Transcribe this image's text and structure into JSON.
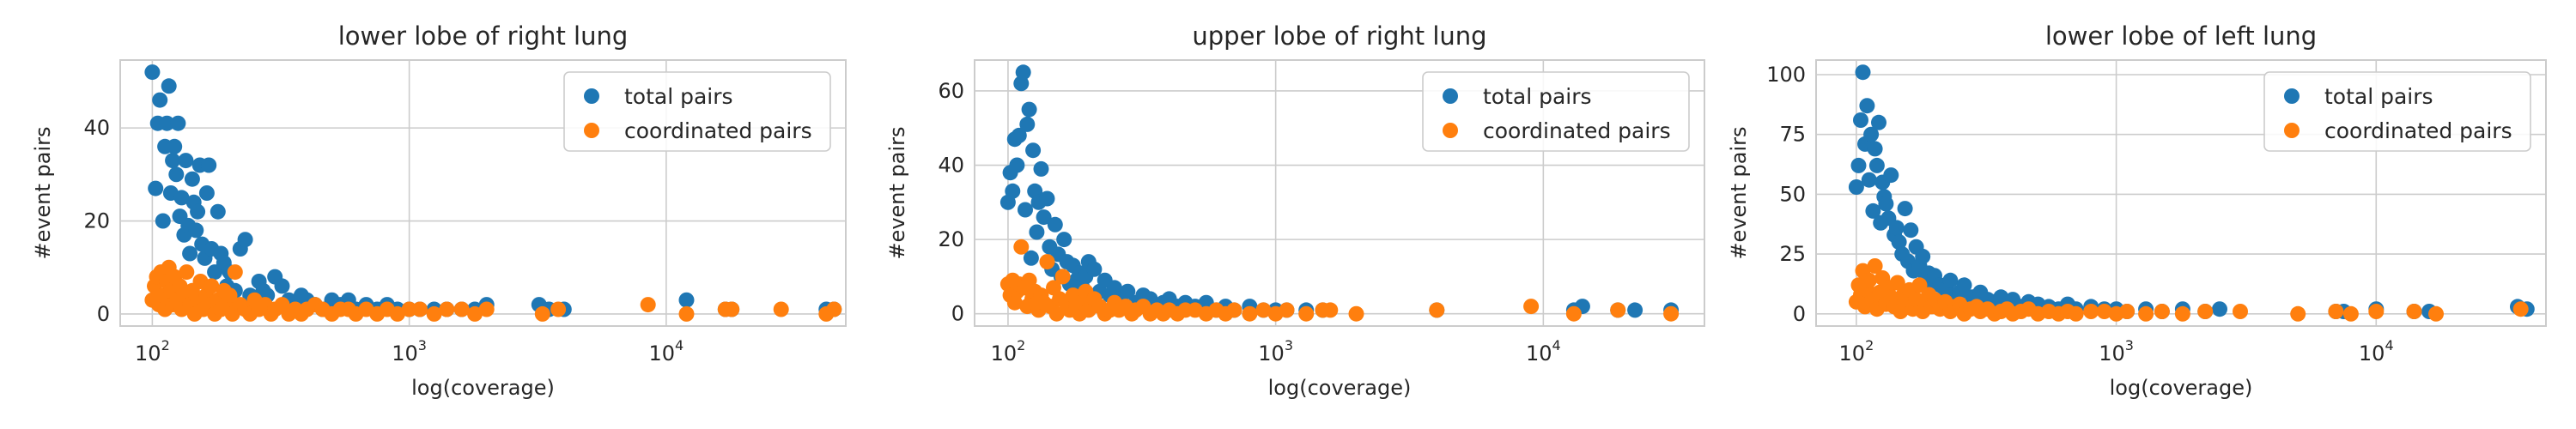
{
  "chart_data": [
    {
      "type": "scatter",
      "title": "lower lobe of right lung",
      "xlabel": "log(coverage)",
      "ylabel": "#event pairs",
      "xscale": "log",
      "xlim": [
        75,
        50000
      ],
      "ylim": [
        -2.6,
        54.6
      ],
      "xticks": [
        {
          "base": "10",
          "exp": "2"
        },
        {
          "base": "10",
          "exp": "3"
        },
        {
          "base": "10",
          "exp": "4"
        }
      ],
      "yticks": [
        0,
        20,
        40
      ],
      "legend": "top-right",
      "series": [
        {
          "name": "total pairs",
          "color": "#1f77b4",
          "x": [
            100,
            103,
            105,
            107,
            110,
            112,
            114,
            116,
            118,
            120,
            122,
            124,
            126,
            128,
            130,
            133,
            135,
            138,
            140,
            143,
            145,
            148,
            150,
            153,
            156,
            160,
            163,
            166,
            170,
            175,
            180,
            185,
            190,
            195,
            200,
            210,
            220,
            230,
            240,
            250,
            260,
            270,
            280,
            300,
            320,
            340,
            360,
            380,
            400,
            430,
            460,
            500,
            540,
            580,
            620,
            680,
            750,
            820,
            900,
            1000,
            1100,
            1250,
            1400,
            1600,
            1800,
            2000,
            3200,
            3500,
            4000,
            12000,
            17000,
            18000,
            42000,
            45000
          ],
          "y": [
            52,
            27,
            41,
            46,
            20,
            36,
            41,
            49,
            26,
            33,
            36,
            30,
            41,
            21,
            25,
            17,
            33,
            19,
            13,
            29,
            24,
            18,
            22,
            32,
            15,
            12,
            26,
            32,
            14,
            9,
            22,
            13,
            11,
            6,
            9,
            5,
            14,
            16,
            4,
            3,
            7,
            5,
            4,
            8,
            6,
            3,
            2,
            4,
            3,
            2,
            1,
            3,
            2,
            3,
            1,
            2,
            1,
            2,
            1,
            1,
            1,
            1,
            1,
            1,
            1,
            2,
            2,
            1,
            1,
            3,
            1,
            1,
            1,
            1
          ]
        },
        {
          "name": "coordinated pairs",
          "color": "#ff7f0e",
          "x": [
            100,
            102,
            104,
            106,
            108,
            110,
            112,
            114,
            116,
            118,
            120,
            122,
            125,
            128,
            130,
            133,
            136,
            140,
            143,
            146,
            150,
            154,
            158,
            162,
            166,
            170,
            175,
            180,
            185,
            190,
            195,
            200,
            205,
            210,
            220,
            230,
            240,
            250,
            260,
            275,
            290,
            300,
            320,
            340,
            360,
            380,
            400,
            430,
            460,
            500,
            540,
            580,
            620,
            680,
            750,
            820,
            900,
            1000,
            1100,
            1250,
            1400,
            1600,
            1800,
            2000,
            3300,
            3800,
            8500,
            12000,
            17000,
            18000,
            28000,
            42000,
            45000
          ],
          "y": [
            3,
            6,
            8,
            2,
            9,
            4,
            1,
            7,
            10,
            5,
            2,
            8,
            3,
            6,
            1,
            4,
            9,
            2,
            5,
            0,
            3,
            7,
            1,
            4,
            2,
            6,
            0,
            3,
            1,
            5,
            2,
            4,
            0,
            9,
            2,
            1,
            0,
            3,
            1,
            2,
            0,
            1,
            2,
            0,
            1,
            0,
            1,
            2,
            1,
            0,
            1,
            1,
            0,
            1,
            0,
            1,
            0,
            1,
            1,
            0,
            1,
            1,
            0,
            1,
            0,
            1,
            2,
            0,
            1,
            1,
            1,
            0,
            1
          ]
        }
      ]
    },
    {
      "type": "scatter",
      "title": "upper lobe of right lung",
      "xlabel": "log(coverage)",
      "ylabel": "#event pairs",
      "xscale": "log",
      "xlim": [
        75,
        40000
      ],
      "ylim": [
        -3.3,
        68.3
      ],
      "xticks": [
        {
          "base": "10",
          "exp": "2"
        },
        {
          "base": "10",
          "exp": "3"
        },
        {
          "base": "10",
          "exp": "4"
        }
      ],
      "yticks": [
        0,
        20,
        40,
        60
      ],
      "legend": "top-right",
      "series": [
        {
          "name": "total pairs",
          "color": "#1f77b4",
          "x": [
            100,
            102,
            104,
            106,
            108,
            110,
            112,
            114,
            116,
            118,
            120,
            122,
            124,
            126,
            128,
            130,
            133,
            136,
            140,
            143,
            146,
            150,
            154,
            158,
            162,
            166,
            170,
            175,
            180,
            185,
            190,
            195,
            200,
            210,
            220,
            230,
            240,
            250,
            260,
            280,
            300,
            320,
            340,
            360,
            380,
            400,
            430,
            460,
            500,
            550,
            600,
            650,
            700,
            800,
            900,
            1000,
            1100,
            1300,
            1500,
            4000,
            13000,
            14000,
            19000,
            22000,
            30000
          ],
          "y": [
            30,
            38,
            33,
            47,
            40,
            48,
            62,
            65,
            28,
            51,
            55,
            15,
            44,
            33,
            22,
            30,
            39,
            26,
            31,
            18,
            12,
            24,
            16,
            10,
            20,
            14,
            8,
            13,
            9,
            11,
            7,
            10,
            14,
            12,
            6,
            9,
            5,
            7,
            4,
            6,
            3,
            5,
            4,
            2,
            3,
            4,
            2,
            3,
            2,
            3,
            1,
            2,
            1,
            2,
            1,
            1,
            1,
            1,
            1,
            1,
            1,
            2,
            1,
            1,
            1
          ]
        },
        {
          "name": "coordinated pairs",
          "color": "#ff7f0e",
          "x": [
            100,
            102,
            104,
            106,
            108,
            110,
            112,
            115,
            118,
            120,
            123,
            126,
            130,
            133,
            136,
            140,
            144,
            148,
            152,
            156,
            160,
            165,
            170,
            175,
            180,
            185,
            190,
            195,
            200,
            210,
            220,
            230,
            240,
            250,
            260,
            275,
            290,
            300,
            320,
            340,
            360,
            380,
            400,
            430,
            460,
            500,
            550,
            600,
            650,
            700,
            800,
            900,
            1000,
            1100,
            1300,
            1500,
            1600,
            2000,
            4000,
            9000,
            13000,
            19000,
            30000
          ],
          "y": [
            8,
            5,
            9,
            3,
            6,
            8,
            18,
            7,
            2,
            9,
            4,
            6,
            1,
            5,
            3,
            14,
            2,
            7,
            0,
            4,
            10,
            3,
            1,
            5,
            2,
            0,
            3,
            6,
            1,
            4,
            2,
            0,
            1,
            3,
            1,
            2,
            0,
            1,
            2,
            0,
            1,
            0,
            1,
            0,
            1,
            1,
            0,
            1,
            0,
            1,
            0,
            1,
            0,
            1,
            0,
            1,
            1,
            0,
            1,
            2,
            0,
            1,
            0
          ]
        }
      ]
    },
    {
      "type": "scatter",
      "title": "lower lobe of left lung",
      "xlabel": "log(coverage)",
      "ylabel": "#event pairs",
      "xscale": "log",
      "xlim": [
        70,
        45000
      ],
      "ylim": [
        -5.1,
        106.1
      ],
      "xticks": [
        {
          "base": "10",
          "exp": "2"
        },
        {
          "base": "10",
          "exp": "3"
        },
        {
          "base": "10",
          "exp": "4"
        }
      ],
      "yticks": [
        0,
        25,
        50,
        75,
        100
      ],
      "legend": "top-right",
      "series": [
        {
          "name": "total pairs",
          "color": "#1f77b4",
          "x": [
            100,
            102,
            104,
            106,
            108,
            110,
            112,
            114,
            116,
            118,
            120,
            122,
            124,
            126,
            128,
            130,
            133,
            136,
            140,
            143,
            146,
            150,
            154,
            158,
            162,
            166,
            170,
            175,
            180,
            185,
            190,
            195,
            200,
            210,
            220,
            230,
            240,
            250,
            260,
            280,
            300,
            320,
            340,
            360,
            380,
            400,
            430,
            460,
            500,
            550,
            600,
            650,
            700,
            800,
            900,
            1000,
            1100,
            1300,
            1500,
            1800,
            2200,
            2500,
            7000,
            7500,
            10000,
            14000,
            16000,
            35000,
            38000
          ],
          "y": [
            53,
            62,
            81,
            101,
            71,
            87,
            56,
            75,
            43,
            69,
            62,
            80,
            38,
            55,
            49,
            46,
            40,
            58,
            33,
            36,
            30,
            25,
            44,
            22,
            35,
            18,
            28,
            20,
            24,
            15,
            17,
            13,
            16,
            12,
            10,
            14,
            8,
            9,
            12,
            7,
            9,
            6,
            5,
            7,
            4,
            6,
            3,
            5,
            4,
            3,
            2,
            4,
            2,
            3,
            2,
            2,
            1,
            2,
            1,
            2,
            1,
            2,
            1,
            1,
            2,
            1,
            1,
            3,
            2
          ]
        },
        {
          "name": "coordinated pairs",
          "color": "#ff7f0e",
          "x": [
            100,
            102,
            104,
            106,
            108,
            110,
            112,
            115,
            118,
            120,
            123,
            126,
            130,
            133,
            136,
            140,
            144,
            148,
            152,
            156,
            160,
            165,
            170,
            175,
            180,
            185,
            190,
            195,
            200,
            210,
            220,
            230,
            240,
            250,
            260,
            275,
            290,
            300,
            320,
            340,
            360,
            380,
            400,
            430,
            460,
            500,
            550,
            600,
            650,
            700,
            800,
            900,
            1000,
            1100,
            1300,
            1500,
            1800,
            2200,
            3000,
            5000,
            7000,
            8000,
            10000,
            14000,
            17000,
            36000
          ],
          "y": [
            5,
            12,
            8,
            18,
            3,
            10,
            14,
            6,
            20,
            2,
            9,
            15,
            4,
            11,
            7,
            3,
            13,
            1,
            8,
            5,
            10,
            2,
            6,
            12,
            1,
            4,
            8,
            3,
            6,
            2,
            5,
            1,
            3,
            4,
            0,
            2,
            3,
            1,
            2,
            0,
            1,
            2,
            0,
            1,
            2,
            0,
            1,
            0,
            1,
            0,
            1,
            1,
            0,
            1,
            0,
            1,
            0,
            1,
            1,
            0,
            1,
            0,
            1,
            1,
            0,
            2
          ]
        }
      ]
    }
  ]
}
